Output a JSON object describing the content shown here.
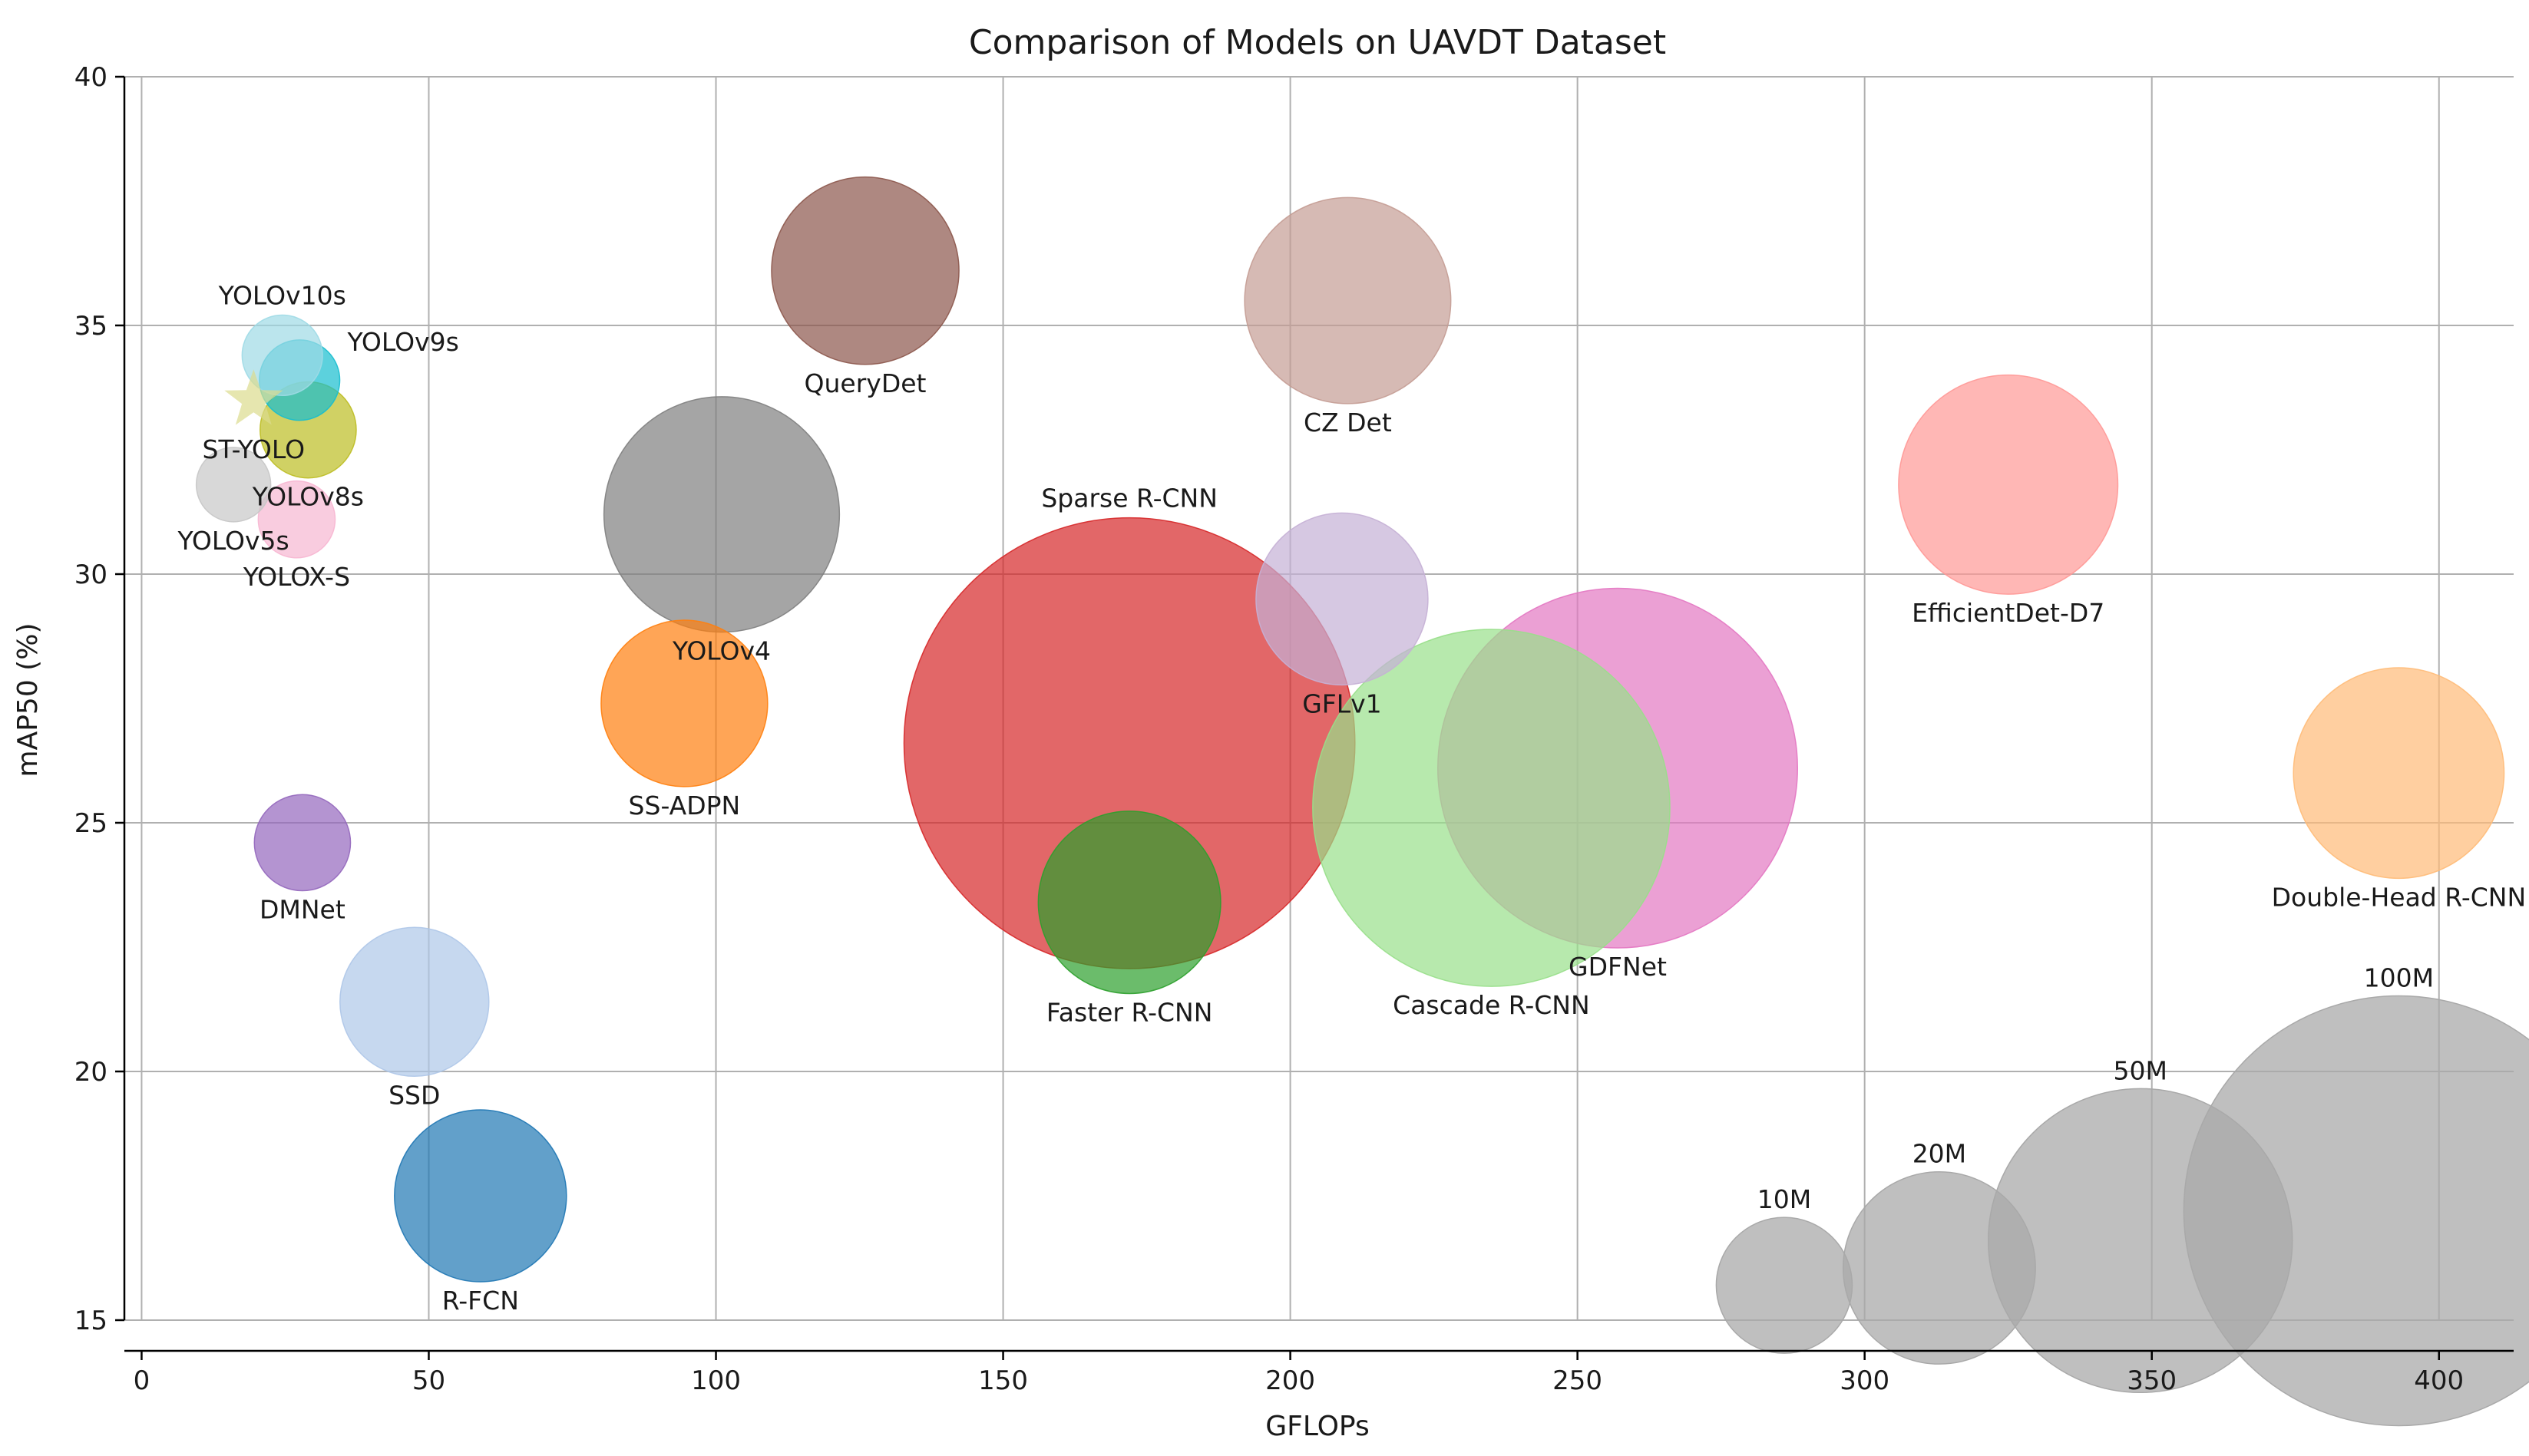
{
  "chart_data": {
    "type": "scatter",
    "title": "Comparison of Models on UAVDT Dataset",
    "xlabel": "GFLOPs",
    "ylabel": "mAP50 (%)",
    "xlim": [
      -3,
      413
    ],
    "ylim": [
      15,
      40
    ],
    "xticks": [
      0,
      50,
      100,
      150,
      200,
      250,
      300,
      350,
      400
    ],
    "yticks": [
      15,
      20,
      25,
      30,
      35,
      40
    ],
    "grid": true,
    "series": [
      {
        "name": "R-FCN",
        "x": 59,
        "y": 17.5,
        "params_m": 16,
        "color": "#1f77b4",
        "label_pos": "below"
      },
      {
        "name": "SS-ADPN",
        "x": 94.5,
        "y": 27.4,
        "params_m": 15,
        "color": "#ff7f0e",
        "label_pos": "below"
      },
      {
        "name": "Faster R-CNN",
        "x": 172,
        "y": 23.4,
        "params_m": 18,
        "color": "#2ca02c",
        "label_pos": "below"
      },
      {
        "name": "Sparse R-CNN",
        "x": 172,
        "y": 26.6,
        "params_m": 110,
        "color": "#d62728",
        "label_pos": "above"
      },
      {
        "name": "DMNet",
        "x": 28,
        "y": 24.6,
        "params_m": 5,
        "color": "#9467bd",
        "label_pos": "below"
      },
      {
        "name": "QueryDet",
        "x": 126,
        "y": 36.1,
        "params_m": 19,
        "color": "#8c564b",
        "label_pos": "below"
      },
      {
        "name": "GDFNet",
        "x": 257,
        "y": 26.1,
        "params_m": 70,
        "color": "#e377c2",
        "label_pos": "below"
      },
      {
        "name": "YOLOv4",
        "x": 101,
        "y": 31.2,
        "params_m": 30,
        "color": "#7f7f7f",
        "label_pos": "below"
      },
      {
        "name": "YOLOv8s",
        "x": 29,
        "y": 32.9,
        "params_m": 5,
        "color": "#bcbd22",
        "label_pos": "below"
      },
      {
        "name": "YOLOv9s",
        "x": 27.5,
        "y": 33.9,
        "params_m": 3.5,
        "color": "#17becf",
        "label_pos": "right"
      },
      {
        "name": "SSD",
        "x": 47.5,
        "y": 21.4,
        "params_m": 12,
        "color": "#aec7e8",
        "label_pos": "below"
      },
      {
        "name": "Double-Head R-CNN",
        "x": 393,
        "y": 26,
        "params_m": 24,
        "color": "#ffbb78",
        "label_pos": "below"
      },
      {
        "name": "Cascade R-CNN",
        "x": 235,
        "y": 25.3,
        "params_m": 69,
        "color": "#98df8a",
        "label_pos": "below"
      },
      {
        "name": "EfficientDet-D7",
        "x": 325,
        "y": 31.8,
        "params_m": 26,
        "color": "#ff9896",
        "label_pos": "below"
      },
      {
        "name": "GFLv1",
        "x": 209,
        "y": 29.5,
        "params_m": 16,
        "color": "#c5b0d5",
        "label_pos": "below"
      },
      {
        "name": "CZ Det",
        "x": 210,
        "y": 35.5,
        "params_m": 23,
        "color": "#c49c94",
        "label_pos": "below"
      },
      {
        "name": "YOLOX-S",
        "x": 27,
        "y": 31.1,
        "params_m": 3.2,
        "color": "#f7b6d2",
        "label_pos": "below"
      },
      {
        "name": "YOLOv5s",
        "x": 16,
        "y": 31.8,
        "params_m": 3,
        "color": "#c7c7c7",
        "label_pos": "below"
      },
      {
        "name": "YOLOv10s",
        "x": 24.5,
        "y": 34.4,
        "params_m": 3.5,
        "color": "#9edae5",
        "label_pos": "above"
      },
      {
        "name": "ST-YOLO",
        "x": 19.5,
        "y": 33.5,
        "params_m": 3,
        "color": "#dbdb8d",
        "label_pos": "below",
        "marker": "star"
      }
    ],
    "size_legend": [
      {
        "label": "10M",
        "x": 286,
        "y": 15.7,
        "params_m": 10
      },
      {
        "label": "20M",
        "x": 313,
        "y": 16.05,
        "params_m": 20
      },
      {
        "label": "50M",
        "x": 348,
        "y": 16.6,
        "params_m": 50
      },
      {
        "label": "100M",
        "x": 393,
        "y": 17.2,
        "params_m": 100
      }
    ],
    "size_legend_color": "#a9a9a9"
  }
}
